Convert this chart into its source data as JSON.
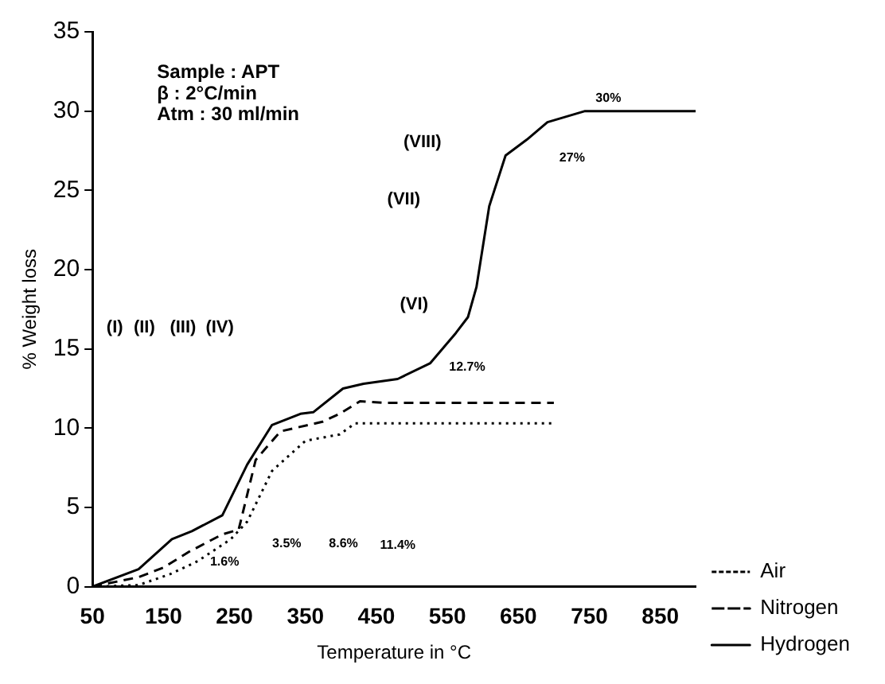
{
  "chart_data": {
    "type": "line",
    "xlabel": "Temperature in °C",
    "ylabel": "% Weight loss",
    "xlim": [
      50,
      900
    ],
    "xticks": [
      50,
      150,
      250,
      350,
      450,
      550,
      650,
      750,
      850
    ],
    "ylim": [
      0,
      35
    ],
    "yticks": [
      0,
      5,
      10,
      15,
      20,
      25,
      30,
      35
    ],
    "grid": false,
    "legend": "bottom right",
    "marker": "none",
    "series": [
      {
        "name": "Air",
        "color": "#000000",
        "line_style": "dotted",
        "x": [
          50,
          115,
          160,
          198,
          245,
          268,
          303,
          350,
          398,
          420,
          500,
          600,
          700
        ],
        "values": [
          0,
          0.1,
          0.8,
          1.6,
          3.0,
          4.1,
          7.3,
          9.2,
          9.6,
          10.3,
          10.3,
          10.3,
          10.3
        ]
      },
      {
        "name": "Nitrogen",
        "color": "#000000",
        "line_style": "dashed",
        "x": [
          50,
          115,
          150,
          186,
          233,
          256,
          280,
          315,
          374,
          398,
          427,
          460,
          550,
          700
        ],
        "values": [
          0,
          0.6,
          1.2,
          2.2,
          3.3,
          3.6,
          8.0,
          9.8,
          10.4,
          10.9,
          11.7,
          11.6,
          11.6,
          11.6
        ]
      },
      {
        "name": "Hydrogen",
        "color": "#000000",
        "line_style": "solid",
        "x": [
          50,
          115,
          162,
          190,
          233,
          268,
          303,
          343,
          361,
          403,
          432,
          480,
          526,
          562,
          579,
          591,
          609,
          632,
          662,
          691,
          744,
          900
        ],
        "values": [
          0,
          1.1,
          3.0,
          3.5,
          4.5,
          7.7,
          10.2,
          10.9,
          11.0,
          12.5,
          12.8,
          13.1,
          14.1,
          16,
          17,
          18.9,
          24,
          27.2,
          28.2,
          29.3,
          30,
          30
        ]
      }
    ],
    "annotations": [
      "Sample : APT",
      "β : 2°C/min",
      "Atm : 30 ml/min",
      "(I)",
      "(II)",
      "(III)",
      "(IV)",
      "(VI)",
      "(VII)",
      "(VIII)",
      "1.6%",
      "3.5%",
      "8.6%",
      "11.4%",
      "12.7%",
      "27%",
      "30%"
    ]
  }
}
